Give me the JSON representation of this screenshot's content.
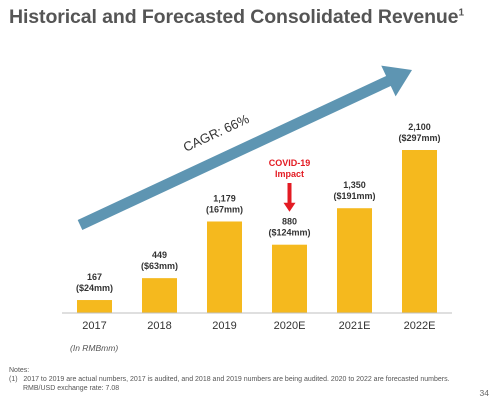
{
  "slide": {
    "title": "Historical and Forecasted Consolidated Revenue",
    "title_footnote": "1",
    "units_label": "(In RMBmm)",
    "notes_heading": "Notes:",
    "note_1_marker": "(1)",
    "note_1_line1": "2017 to 2019 are actual numbers, 2017 is audited, and 2018 and 2019 numbers are being audited. 2020 to 2022 are forecasted numbers.",
    "note_1_line2": "RMB/USD exchange rate: 7.08",
    "page_number": "34"
  },
  "colors": {
    "bar": "#F5B91E",
    "arrow": "#5E95B2",
    "covid_text": "#E31B23",
    "covid_arrow": "#E31B23",
    "axis": "#BFBFBF",
    "label": "#333333"
  },
  "chart_data": {
    "type": "bar",
    "categories": [
      "2017",
      "2018",
      "2019",
      "2020E",
      "2021E",
      "2022E"
    ],
    "values": [
      167,
      449,
      1179,
      880,
      1350,
      2100
    ],
    "data_labels": [
      [
        "167",
        "($24mm)"
      ],
      [
        "449",
        "($63mm)"
      ],
      [
        "1,179",
        "(167mm)"
      ],
      [
        "880",
        "($124mm)"
      ],
      [
        "1,350",
        "($191mm)"
      ],
      [
        "2,100",
        "($297mm)"
      ]
    ],
    "ylim": [
      0,
      2100
    ],
    "grid": false,
    "legend": "none",
    "annotations": {
      "cagr_label": "CAGR: 66%",
      "covid_label_line1": "COVID-19",
      "covid_label_line2": "Impact",
      "covid_points_to": "2020E"
    }
  }
}
